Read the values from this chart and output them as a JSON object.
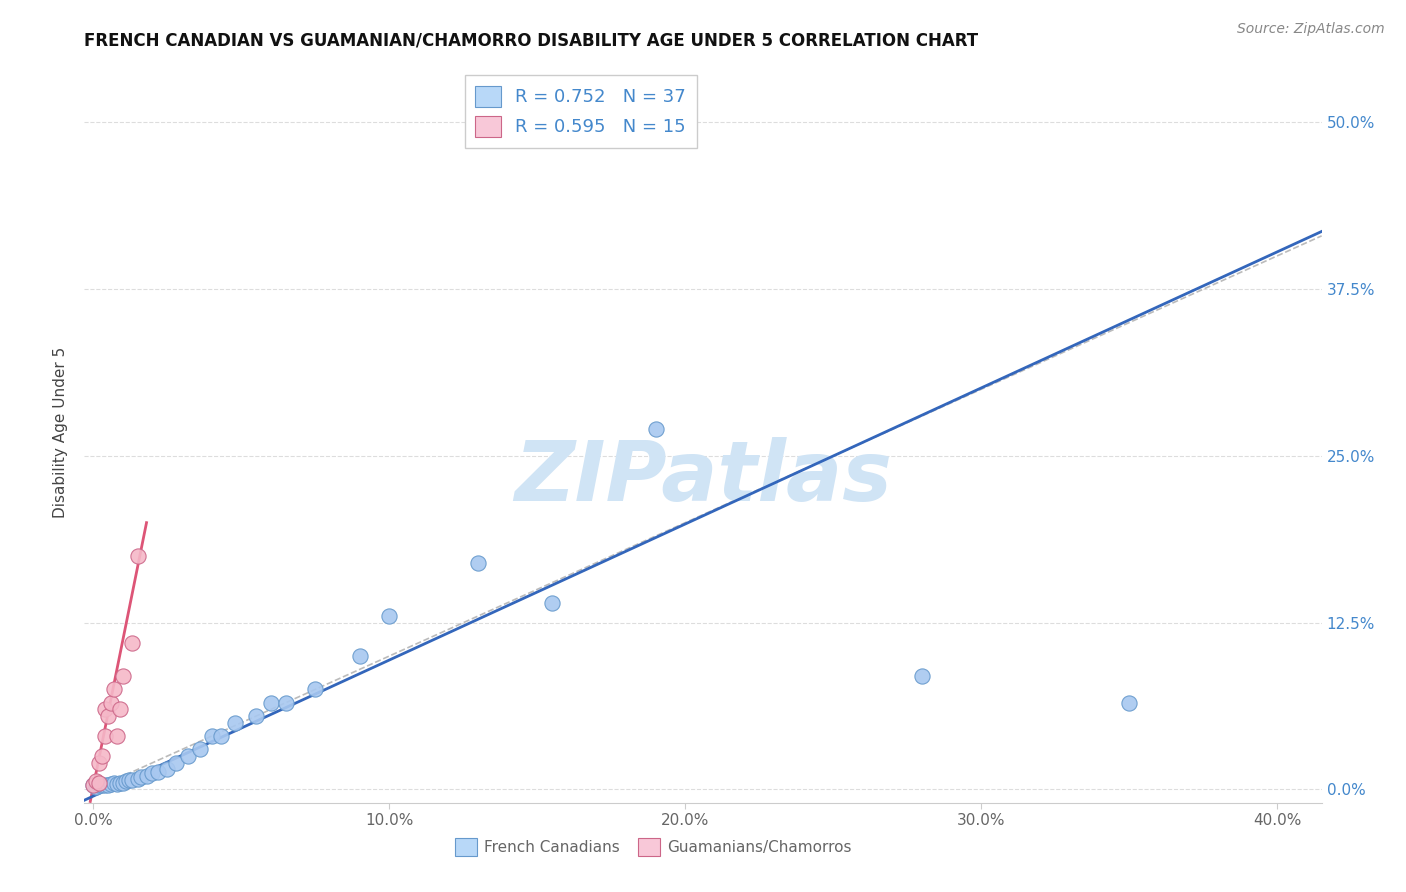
{
  "title": "FRENCH CANADIAN VS GUAMANIAN/CHAMORRO DISABILITY AGE UNDER 5 CORRELATION CHART",
  "source": "Source: ZipAtlas.com",
  "ylabel": "Disability Age Under 5",
  "xlim": [
    -0.003,
    0.415
  ],
  "ylim": [
    -0.01,
    0.545
  ],
  "xlabel_vals": [
    0.0,
    0.1,
    0.2,
    0.3,
    0.4
  ],
  "ylabel_vals": [
    0.0,
    0.125,
    0.25,
    0.375,
    0.5
  ],
  "xlabel_labels": [
    "0.0%",
    "10.0%",
    "20.0%",
    "30.0%",
    "40.0%"
  ],
  "ylabel_labels": [
    "0.0%",
    "12.5%",
    "25.0%",
    "37.5%",
    "50.0%"
  ],
  "blue_R": 0.752,
  "blue_N": 37,
  "pink_R": 0.595,
  "pink_N": 15,
  "blue_scatter_x": [
    0.0,
    0.001,
    0.002,
    0.003,
    0.004,
    0.005,
    0.006,
    0.007,
    0.008,
    0.009,
    0.01,
    0.011,
    0.012,
    0.013,
    0.015,
    0.016,
    0.018,
    0.02,
    0.022,
    0.025,
    0.028,
    0.032,
    0.036,
    0.04,
    0.043,
    0.048,
    0.055,
    0.06,
    0.065,
    0.075,
    0.09,
    0.1,
    0.13,
    0.155,
    0.19,
    0.28,
    0.35
  ],
  "blue_scatter_y": [
    0.003,
    0.002,
    0.003,
    0.003,
    0.003,
    0.003,
    0.004,
    0.005,
    0.004,
    0.005,
    0.005,
    0.006,
    0.007,
    0.007,
    0.008,
    0.009,
    0.01,
    0.012,
    0.013,
    0.015,
    0.02,
    0.025,
    0.03,
    0.04,
    0.04,
    0.05,
    0.055,
    0.065,
    0.065,
    0.075,
    0.1,
    0.13,
    0.17,
    0.14,
    0.27,
    0.085,
    0.065
  ],
  "pink_scatter_x": [
    0.0,
    0.001,
    0.002,
    0.002,
    0.003,
    0.004,
    0.004,
    0.005,
    0.006,
    0.007,
    0.008,
    0.009,
    0.01,
    0.013,
    0.015
  ],
  "pink_scatter_y": [
    0.003,
    0.006,
    0.005,
    0.02,
    0.025,
    0.04,
    0.06,
    0.055,
    0.065,
    0.075,
    0.04,
    0.06,
    0.085,
    0.11,
    0.175
  ],
  "blue_line_x0": -0.005,
  "blue_line_x1": 0.415,
  "blue_line_y_intercept": -0.005,
  "blue_line_slope": 1.02,
  "pink_line_x0": -0.001,
  "pink_line_x1": 0.018,
  "pink_line_y_intercept": 0.002,
  "pink_line_slope": 11.0,
  "diagonal_line_x": [
    0.0,
    0.415
  ],
  "diagonal_line_y": [
    0.0,
    0.415
  ],
  "blue_scatter_color": "#a8c8f0",
  "blue_scatter_edge": "#6699cc",
  "blue_line_color": "#3366bb",
  "pink_scatter_color": "#f5b8c8",
  "pink_scatter_edge": "#cc6688",
  "pink_line_color": "#dd5577",
  "diagonal_color": "#bbbbbb",
  "watermark_color": "#d0e4f5",
  "legend_blue_fill": "#b8d8f8",
  "legend_blue_edge": "#6699cc",
  "legend_pink_fill": "#f8c8d8",
  "legend_pink_edge": "#cc6688",
  "background_color": "#ffffff",
  "grid_color": "#dddddd",
  "tick_label_color": "#666666",
  "right_tick_color": "#4488cc",
  "ylabel_color": "#444444",
  "title_color": "#111111"
}
